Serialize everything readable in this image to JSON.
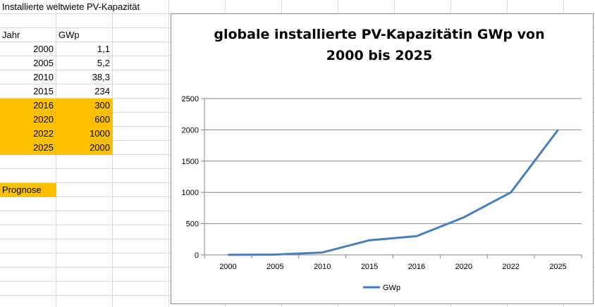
{
  "sheet": {
    "title": "Installierte weltwiete PV-Kapazität",
    "col_headers": [
      "Jahr",
      "GWp"
    ],
    "rows": [
      {
        "jahr": "2000",
        "gwp": "1,1"
      },
      {
        "jahr": "2005",
        "gwp": "5,2"
      },
      {
        "jahr": "2010",
        "gwp": "38,3"
      },
      {
        "jahr": "2015",
        "gwp": "234"
      },
      {
        "jahr": "2016",
        "gwp": "300"
      },
      {
        "jahr": "2020",
        "gwp": "600"
      },
      {
        "jahr": "2022",
        "gwp": "1000"
      },
      {
        "jahr": "2025",
        "gwp": "2000"
      }
    ],
    "prognose_label": "Prognose",
    "highlight_color": "#ffc000"
  },
  "chart_data": {
    "type": "line",
    "title_line1": "globale installierte PV-Kapazitätin GWp von",
    "title_line2": "2000 bis 2025",
    "categories": [
      "2000",
      "2005",
      "2010",
      "2015",
      "2016",
      "2020",
      "2022",
      "2025"
    ],
    "series": [
      {
        "name": "GWp",
        "values": [
          1.1,
          5.2,
          38.3,
          234,
          300,
          600,
          1000,
          2000
        ],
        "color": "#4a7ebb"
      }
    ],
    "ylim": [
      0,
      2500
    ],
    "yticks": [
      "0",
      "500",
      "1000",
      "1500",
      "2000",
      "2500"
    ],
    "grid": true,
    "legend_position": "bottom"
  }
}
